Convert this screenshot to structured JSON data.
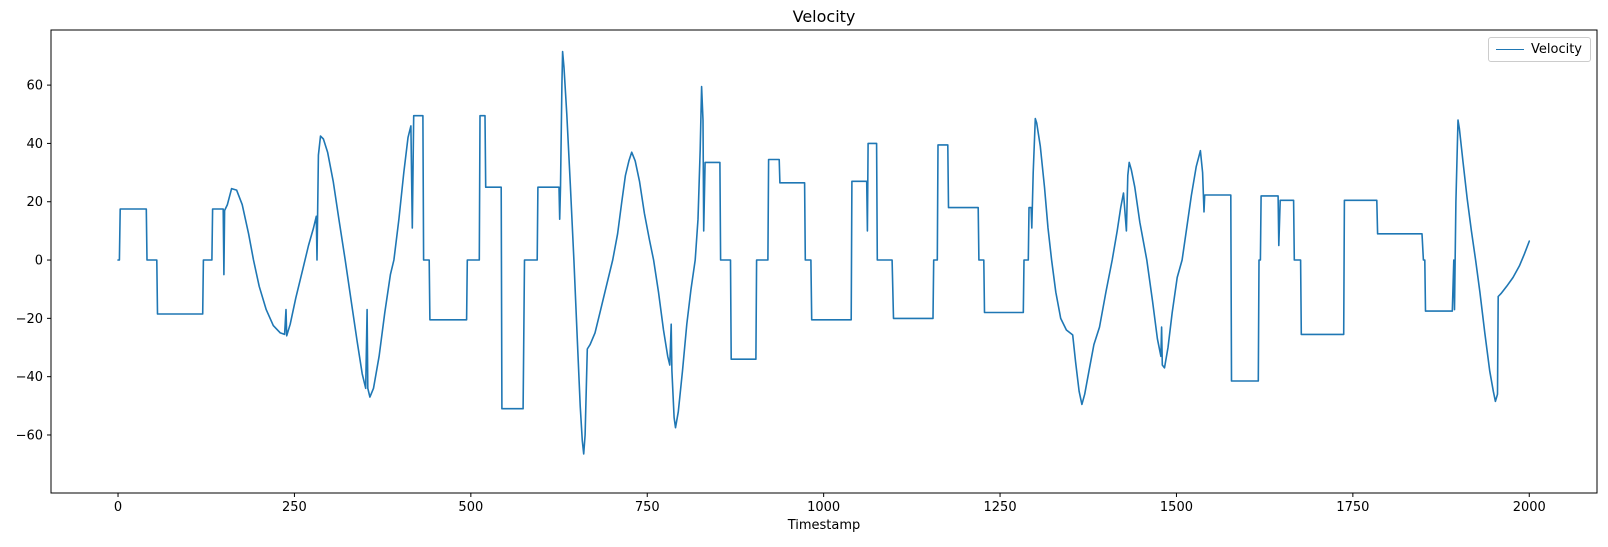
{
  "chart_data": {
    "type": "line",
    "title": "Velocity",
    "xlabel": "Timestamp",
    "ylabel": "",
    "legend": [
      "Velocity"
    ],
    "legend_position": "upper right",
    "grid": false,
    "line_color": "#1f77b4",
    "xlim": [
      -95,
      2096
    ],
    "ylim": [
      -79.9,
      78.9
    ],
    "xticks": [
      0,
      250,
      500,
      750,
      1000,
      1250,
      1500,
      1750,
      2000
    ],
    "xtick_labels": [
      "0",
      "250",
      "500",
      "750",
      "1000",
      "1250",
      "1500",
      "1750",
      "2000"
    ],
    "yticks": [
      -60,
      -40,
      -20,
      0,
      20,
      40,
      60
    ],
    "ytick_labels": [
      "−60",
      "−40",
      "−20",
      "0",
      "20",
      "40",
      "60"
    ],
    "series": [
      {
        "name": "Velocity",
        "color": "#1f77b4",
        "points": [
          [
            0,
            0
          ],
          [
            2,
            0
          ],
          [
            3,
            17.5
          ],
          [
            40,
            17.5
          ],
          [
            41,
            0
          ],
          [
            55,
            0
          ],
          [
            56,
            -18.5
          ],
          [
            120,
            -18.5
          ],
          [
            121,
            0
          ],
          [
            133,
            0
          ],
          [
            134,
            17.5
          ],
          [
            149,
            17.5
          ],
          [
            150,
            -5
          ],
          [
            151,
            17
          ],
          [
            155,
            19
          ],
          [
            161,
            24.5
          ],
          [
            168,
            24
          ],
          [
            176,
            19
          ],
          [
            185,
            9
          ],
          [
            192,
            0
          ],
          [
            200,
            -9
          ],
          [
            210,
            -17
          ],
          [
            220,
            -22.5
          ],
          [
            230,
            -25
          ],
          [
            236,
            -25.5
          ],
          [
            238,
            -17
          ],
          [
            239,
            -26
          ],
          [
            244,
            -22
          ],
          [
            252,
            -13
          ],
          [
            262,
            -3
          ],
          [
            270,
            5
          ],
          [
            277,
            11
          ],
          [
            281,
            15
          ],
          [
            282,
            0
          ],
          [
            284,
            36
          ],
          [
            287,
            42.5
          ],
          [
            291,
            41.5
          ],
          [
            297,
            37
          ],
          [
            305,
            27
          ],
          [
            313,
            14
          ],
          [
            322,
            0
          ],
          [
            331,
            -15
          ],
          [
            339,
            -28
          ],
          [
            346,
            -39
          ],
          [
            351,
            -44
          ],
          [
            353,
            -17
          ],
          [
            354,
            -44
          ],
          [
            357,
            -47
          ],
          [
            362,
            -44
          ],
          [
            370,
            -33
          ],
          [
            378,
            -18
          ],
          [
            386,
            -5
          ],
          [
            391,
            0
          ],
          [
            398,
            14
          ],
          [
            405,
            30
          ],
          [
            411,
            42
          ],
          [
            415,
            46
          ],
          [
            417,
            11
          ],
          [
            419,
            49.5
          ],
          [
            432,
            49.5
          ],
          [
            433,
            0
          ],
          [
            441,
            0
          ],
          [
            442,
            -20.5
          ],
          [
            494,
            -20.5
          ],
          [
            495,
            0
          ],
          [
            512,
            0
          ],
          [
            513,
            49.5
          ],
          [
            520,
            49.5
          ],
          [
            521,
            25
          ],
          [
            543,
            25
          ],
          [
            544,
            -51
          ],
          [
            574,
            -51
          ],
          [
            576,
            0
          ],
          [
            594,
            0
          ],
          [
            595,
            25
          ],
          [
            625,
            25
          ],
          [
            626,
            14
          ],
          [
            627,
            25
          ],
          [
            629,
            60
          ],
          [
            630,
            71.5
          ],
          [
            632,
            66
          ],
          [
            636,
            50
          ],
          [
            641,
            26
          ],
          [
            646,
            0
          ],
          [
            651,
            -28
          ],
          [
            655,
            -50
          ],
          [
            658,
            -62
          ],
          [
            660,
            -66.5
          ],
          [
            662,
            -60
          ],
          [
            665,
            -30.5
          ],
          [
            669,
            -29
          ],
          [
            676,
            -25
          ],
          [
            684,
            -17
          ],
          [
            693,
            -8
          ],
          [
            701,
            0
          ],
          [
            708,
            9
          ],
          [
            714,
            20
          ],
          [
            719,
            29
          ],
          [
            724,
            34
          ],
          [
            728,
            37
          ],
          [
            733,
            34
          ],
          [
            739,
            27
          ],
          [
            746,
            16
          ],
          [
            753,
            7
          ],
          [
            759,
            0
          ],
          [
            766,
            -11
          ],
          [
            773,
            -24
          ],
          [
            779,
            -33
          ],
          [
            782,
            -36
          ],
          [
            784,
            -22
          ],
          [
            785,
            -38
          ],
          [
            788,
            -54
          ],
          [
            790,
            -57.5
          ],
          [
            794,
            -52
          ],
          [
            800,
            -38
          ],
          [
            806,
            -22
          ],
          [
            812,
            -10
          ],
          [
            818,
            0
          ],
          [
            822,
            14
          ],
          [
            825,
            38
          ],
          [
            827,
            59.5
          ],
          [
            829,
            48
          ],
          [
            830,
            10
          ],
          [
            832,
            33.5
          ],
          [
            853,
            33.5
          ],
          [
            854,
            0
          ],
          [
            868,
            0
          ],
          [
            869,
            -34
          ],
          [
            904,
            -34
          ],
          [
            905,
            0
          ],
          [
            921,
            0
          ],
          [
            922,
            34.5
          ],
          [
            937,
            34.5
          ],
          [
            938,
            26.5
          ],
          [
            973,
            26.5
          ],
          [
            974,
            0
          ],
          [
            982,
            0
          ],
          [
            983,
            -20.5
          ],
          [
            1039,
            -20.5
          ],
          [
            1040,
            27
          ],
          [
            1061,
            27
          ],
          [
            1062,
            10
          ],
          [
            1063,
            40
          ],
          [
            1075,
            40
          ],
          [
            1076,
            0
          ],
          [
            1097,
            0
          ],
          [
            1099,
            -20
          ],
          [
            1155,
            -20
          ],
          [
            1156,
            0
          ],
          [
            1161,
            0
          ],
          [
            1162,
            39.5
          ],
          [
            1176,
            39.5
          ],
          [
            1177,
            18
          ],
          [
            1219,
            18
          ],
          [
            1220,
            0
          ],
          [
            1227,
            0
          ],
          [
            1228,
            -18
          ],
          [
            1283,
            -18
          ],
          [
            1284,
            0
          ],
          [
            1290,
            0
          ],
          [
            1291,
            18
          ],
          [
            1294,
            18
          ],
          [
            1295,
            11
          ],
          [
            1297,
            30
          ],
          [
            1300,
            48.5
          ],
          [
            1302,
            47
          ],
          [
            1307,
            39
          ],
          [
            1313,
            25
          ],
          [
            1318,
            11
          ],
          [
            1323,
            0
          ],
          [
            1329,
            -11
          ],
          [
            1336,
            -20
          ],
          [
            1344,
            -24
          ],
          [
            1352,
            -25.5
          ],
          [
            1353,
            -25.7
          ],
          [
            1357,
            -35
          ],
          [
            1362,
            -45
          ],
          [
            1366,
            -49.5
          ],
          [
            1370,
            -46
          ],
          [
            1376,
            -38
          ],
          [
            1383,
            -29
          ],
          [
            1391,
            -23
          ],
          [
            1400,
            -11
          ],
          [
            1409,
            0
          ],
          [
            1416,
            10
          ],
          [
            1421,
            18
          ],
          [
            1425,
            23
          ],
          [
            1429,
            10
          ],
          [
            1431,
            29
          ],
          [
            1433,
            33.5
          ],
          [
            1436,
            31
          ],
          [
            1441,
            25
          ],
          [
            1448,
            13
          ],
          [
            1458,
            0
          ],
          [
            1466,
            -14
          ],
          [
            1473,
            -27
          ],
          [
            1478,
            -33
          ],
          [
            1479,
            -23
          ],
          [
            1480,
            -36
          ],
          [
            1483,
            -37
          ],
          [
            1488,
            -30
          ],
          [
            1494,
            -18
          ],
          [
            1501,
            -6
          ],
          [
            1508,
            0
          ],
          [
            1514,
            10
          ],
          [
            1521,
            22
          ],
          [
            1528,
            32
          ],
          [
            1534,
            37.5
          ],
          [
            1537,
            30
          ],
          [
            1539,
            16.5
          ],
          [
            1540,
            22.3
          ],
          [
            1577,
            22.3
          ],
          [
            1578,
            -41.5
          ],
          [
            1616,
            -41.5
          ],
          [
            1617,
            0
          ],
          [
            1619,
            0
          ],
          [
            1620,
            22
          ],
          [
            1644,
            22
          ],
          [
            1645,
            5
          ],
          [
            1647,
            20.5
          ],
          [
            1666,
            20.5
          ],
          [
            1667,
            0
          ],
          [
            1676,
            0
          ],
          [
            1677,
            -25.5
          ],
          [
            1737,
            -25.5
          ],
          [
            1738,
            20.5
          ],
          [
            1784,
            20.5
          ],
          [
            1785,
            9
          ],
          [
            1848,
            9
          ],
          [
            1850,
            0
          ],
          [
            1852,
            0
          ],
          [
            1853,
            -17.5
          ],
          [
            1891,
            -17.5
          ],
          [
            1893,
            0
          ],
          [
            1894,
            -17
          ],
          [
            1896,
            20
          ],
          [
            1899,
            48
          ],
          [
            1901,
            45
          ],
          [
            1906,
            34
          ],
          [
            1912,
            21
          ],
          [
            1918,
            10
          ],
          [
            1924,
            0
          ],
          [
            1930,
            -11
          ],
          [
            1937,
            -25
          ],
          [
            1944,
            -38
          ],
          [
            1949,
            -45
          ],
          [
            1952,
            -48.5
          ],
          [
            1955,
            -46
          ],
          [
            1956,
            -12.5
          ],
          [
            1960,
            -11.5
          ],
          [
            1968,
            -9
          ],
          [
            1977,
            -6
          ],
          [
            1986,
            -2
          ],
          [
            1993,
            2
          ],
          [
            2000,
            6.5
          ]
        ]
      }
    ]
  }
}
